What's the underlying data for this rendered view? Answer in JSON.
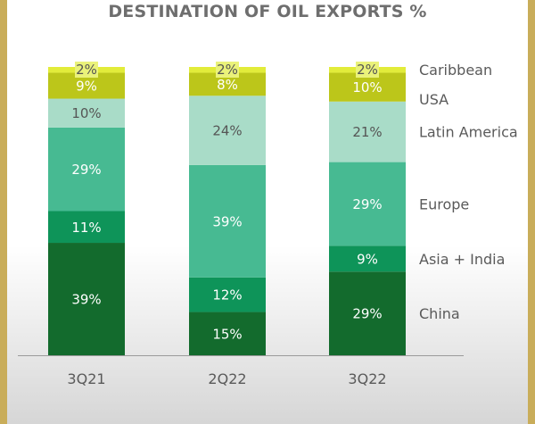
{
  "chart_data": {
    "type": "bar",
    "stacked": true,
    "title": "DESTINATION OF OIL EXPORTS %",
    "categories": [
      "3Q21",
      "2Q22",
      "3Q22"
    ],
    "series": [
      {
        "name": "China",
        "values": [
          39,
          15,
          29
        ],
        "labels": [
          "39%",
          "15%",
          "29%"
        ],
        "color": "#136b2d"
      },
      {
        "name": "Asia + India",
        "values": [
          11,
          12,
          9
        ],
        "labels": [
          "11%",
          "12%",
          "9%"
        ],
        "color": "#0e9459"
      },
      {
        "name": "Europe",
        "values": [
          29,
          39,
          29
        ],
        "labels": [
          "29%",
          "39%",
          "29%"
        ],
        "color": "#47ba92"
      },
      {
        "name": "Latin America",
        "values": [
          10,
          24,
          21
        ],
        "labels": [
          "10%",
          "24%",
          "21%"
        ],
        "color": "#a9dcc8"
      },
      {
        "name": "USA",
        "values": [
          9,
          8,
          10
        ],
        "labels": [
          "9%",
          "8%",
          "10%"
        ],
        "color": "#bcc61a"
      },
      {
        "name": "Caribbean",
        "values": [
          2,
          2,
          2
        ],
        "labels": [
          "2%",
          "2%",
          "2%"
        ],
        "color": "#e2ec3a"
      }
    ],
    "ylim": [
      0,
      100
    ],
    "grid": false,
    "legend": "right"
  }
}
